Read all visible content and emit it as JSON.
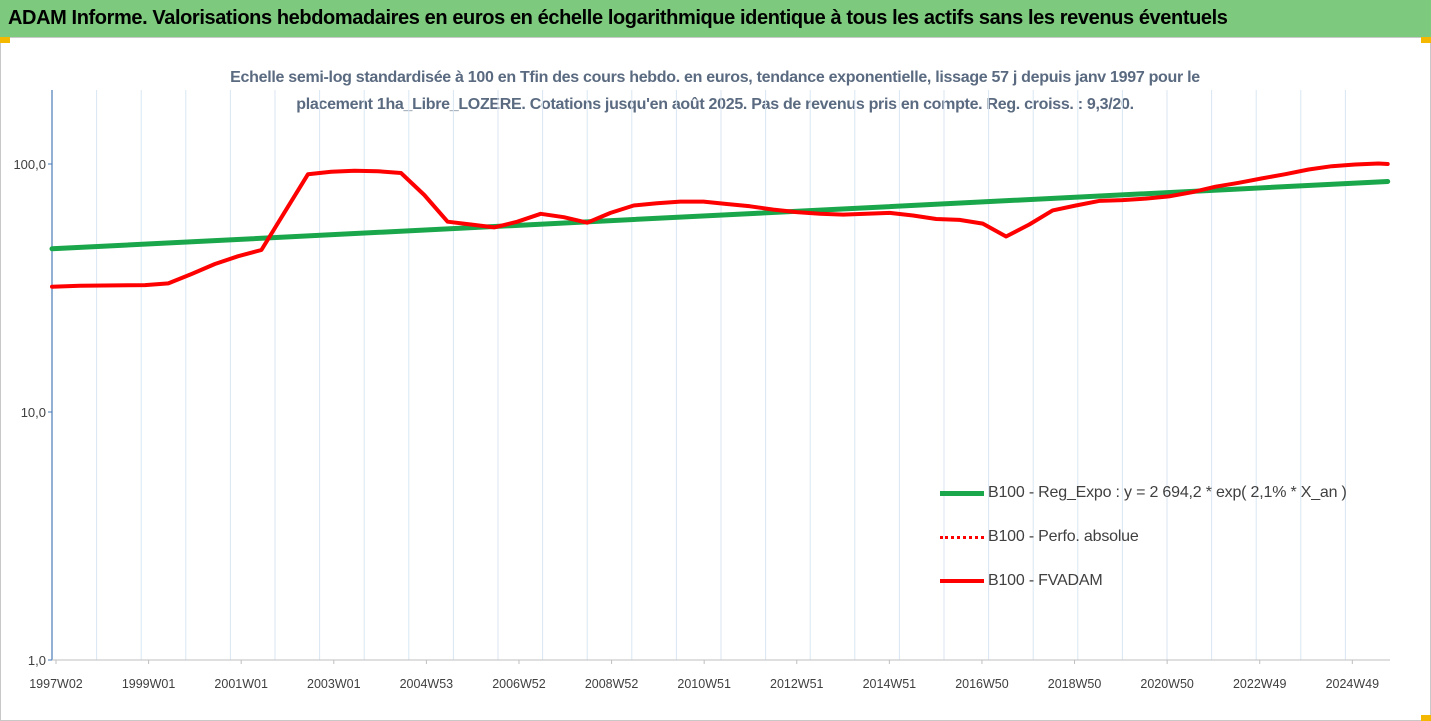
{
  "header": {
    "title": "ADAM Informe. Valorisations hebdomadaires en euros en échelle logarithmique identique à tous les actifs sans les revenus éventuels"
  },
  "colors": {
    "header_bg": "#7dc97d",
    "accent_corner": "#f5b800",
    "trend": "#1aa64a",
    "series": "#ff0000",
    "axis": "#4a7ab8",
    "grid": "#d9e6f2"
  },
  "chart_data": {
    "type": "line",
    "title_line1": "Echelle semi-log standardisée à 100 en Tfin des cours hebdo. en euros, tendance exponentielle, lissage 57 j depuis janv 1997 pour le",
    "title_line2": "placement 1ha_Libre_LOZERE. Cotations jusqu'en août 2025.  Pas de revenus pris en compte. Reg. croiss. : 9,3/20.",
    "y_scale": "log",
    "ylim": [
      1,
      200
    ],
    "y_ticks": [
      {
        "value": 1,
        "label": "1,0"
      },
      {
        "value": 10,
        "label": "10,0"
      },
      {
        "value": 100,
        "label": "100,0"
      }
    ],
    "x_range": [
      1997.0,
      2025.75
    ],
    "x_tick_labels": [
      "1997W02",
      "1999W01",
      "2001W01",
      "2003W01",
      "2004W53",
      "2006W52",
      "2008W52",
      "2010W51",
      "2012W51",
      "2014W51",
      "2016W50",
      "2018W50",
      "2020W50",
      "2022W49",
      "2024W49"
    ],
    "grid": true,
    "legend_position": "lower-right",
    "series": [
      {
        "name": "B100 - Reg_Expo : y = 2 694,2 * exp( 2,1% *  X_an )",
        "style": "solid-green",
        "x": [
          1997.0,
          2025.7
        ],
        "y": [
          45.5,
          85.0
        ]
      },
      {
        "name": "B100 - Perfo. absolue",
        "style": "dotted-red",
        "x": [],
        "y": []
      },
      {
        "name": "B100 - FVADAM",
        "style": "solid-red",
        "x": [
          1997.0,
          1997.6,
          1999.0,
          1999.5,
          2000.0,
          2000.5,
          2001.0,
          2001.5,
          2002.0,
          2002.5,
          2003.0,
          2003.5,
          2004.0,
          2004.5,
          2005.0,
          2005.5,
          2006.0,
          2006.5,
          2007.0,
          2007.5,
          2008.0,
          2008.5,
          2009.0,
          2009.5,
          2010.0,
          2010.5,
          2011.0,
          2011.5,
          2012.0,
          2012.5,
          2013.0,
          2013.5,
          2014.0,
          2014.5,
          2015.0,
          2015.5,
          2016.0,
          2016.5,
          2017.0,
          2017.5,
          2018.0,
          2018.5,
          2019.0,
          2019.5,
          2020.0,
          2020.5,
          2021.0,
          2021.5,
          2022.0,
          2022.5,
          2023.0,
          2023.5,
          2024.0,
          2024.5,
          2025.0,
          2025.5,
          2025.7
        ],
        "y": [
          32.0,
          32.3,
          32.5,
          33.0,
          36.0,
          39.5,
          42.5,
          45.0,
          64.0,
          91.0,
          93.0,
          94.0,
          93.5,
          92.0,
          75.0,
          58.5,
          57.0,
          55.5,
          58.5,
          63.0,
          61.0,
          58.0,
          63.5,
          68.0,
          69.5,
          70.5,
          70.5,
          69.0,
          67.5,
          65.5,
          64.0,
          63.0,
          62.5,
          63.0,
          63.5,
          62.0,
          60.0,
          59.5,
          57.5,
          51.0,
          57.0,
          65.0,
          68.0,
          71.0,
          71.5,
          72.5,
          74.0,
          77.0,
          81.0,
          84.0,
          87.5,
          91.0,
          95.0,
          98.0,
          99.5,
          100.5,
          100.0
        ]
      }
    ]
  }
}
